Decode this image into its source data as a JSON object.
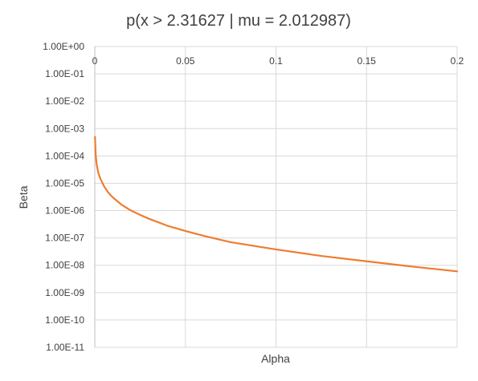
{
  "chart_data": {
    "type": "line",
    "title": "p(x > 2.31627  |  mu = 2.012987)",
    "xlabel": "Alpha",
    "ylabel": "Beta",
    "xlim": [
      0,
      0.2
    ],
    "ylim": [
      1e-11,
      1
    ],
    "y_scale": "log",
    "grid": true,
    "legend": "none",
    "x_ticks": [
      "0",
      "0.05",
      "0.1",
      "0.15",
      "0.2"
    ],
    "x_tick_values": [
      0,
      0.05,
      0.1,
      0.15,
      0.2
    ],
    "y_ticks": [
      "1.00E+00",
      "1.00E-01",
      "1.00E-02",
      "1.00E-03",
      "1.00E-04",
      "1.00E-05",
      "1.00E-06",
      "1.00E-07",
      "1.00E-08",
      "1.00E-09",
      "1.00E-10",
      "1.00E-11"
    ],
    "series": [
      {
        "color": "#ED7D31",
        "x": [
          0.0001,
          0.0005,
          0.001,
          0.002,
          0.003,
          0.005,
          0.0075,
          0.01,
          0.015,
          0.02,
          0.025,
          0.03,
          0.04,
          0.05,
          0.06,
          0.075,
          0.1,
          0.125,
          0.15,
          0.175,
          0.2
        ],
        "y": [
          0.0005,
          0.00011,
          5e-05,
          2.3e-05,
          1.5e-05,
          8e-06,
          4.5e-06,
          3e-06,
          1.6e-06,
          1e-06,
          7e-07,
          5e-07,
          2.8e-07,
          1.8e-07,
          1.2e-07,
          7e-08,
          3.8e-08,
          2.2e-08,
          1.4e-08,
          9e-09,
          6e-09
        ]
      }
    ]
  }
}
